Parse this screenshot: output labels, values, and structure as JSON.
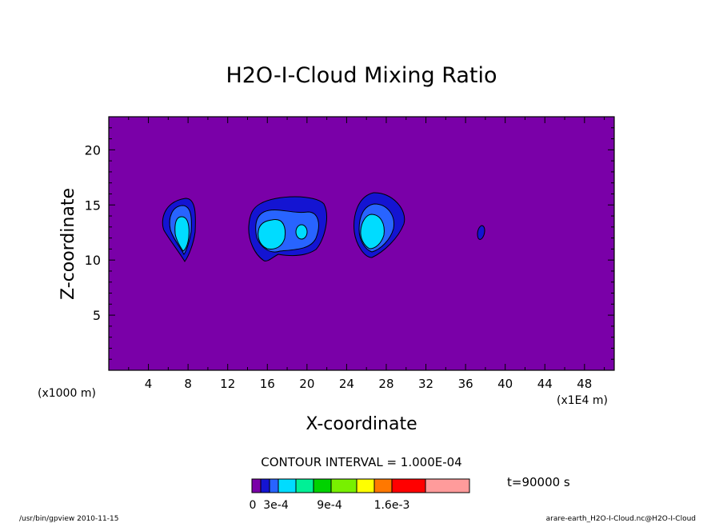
{
  "chart_data": {
    "type": "contour",
    "title": "H2O-I-Cloud Mixing Ratio",
    "xlabel": "X-coordinate",
    "ylabel": "Z-coordinate",
    "x_scale_note": "(x1E4 m)",
    "z_scale_note": "(x1000 m)",
    "xlim": [
      0,
      51
    ],
    "ylim": [
      0,
      23
    ],
    "x_ticks": [
      "4",
      "8",
      "12",
      "16",
      "20",
      "24",
      "28",
      "32",
      "36",
      "40",
      "44",
      "48"
    ],
    "y_ticks": [
      "5",
      "10",
      "15",
      "20"
    ],
    "contour_interval": "CONTOUR INTERVAL = 1.000E-04",
    "time_label": "t=90000 s",
    "colorbar": {
      "colors": [
        "#7a00a8",
        "#1414d2",
        "#2864ff",
        "#00dcff",
        "#00f096",
        "#00d200",
        "#78f000",
        "#ffff00",
        "#ff7800",
        "#ff0000",
        "#ff9b9b"
      ],
      "tick_labels": [
        "0",
        "3e-4",
        "9e-4",
        "1.6e-3"
      ]
    },
    "features": [
      {
        "x_center": 7.7,
        "z_center": 12.9,
        "max_level": "3e-4"
      },
      {
        "x_center": 16.5,
        "z_center": 12.5,
        "max_level": "3e-4"
      },
      {
        "x_center": 19.6,
        "z_center": 12.6,
        "max_level": "3e-4"
      },
      {
        "x_center": 26.7,
        "z_center": 12.8,
        "max_level": "3e-4"
      },
      {
        "x_center": 37.9,
        "z_center": 12.5,
        "max_level": "1e-4"
      }
    ],
    "background_color": "#7a00a8"
  },
  "footer": {
    "left": "/usr/bin/gpview   2010-11-15",
    "right": "arare-earth_H2O-I-Cloud.nc@H2O-I-Cloud"
  }
}
